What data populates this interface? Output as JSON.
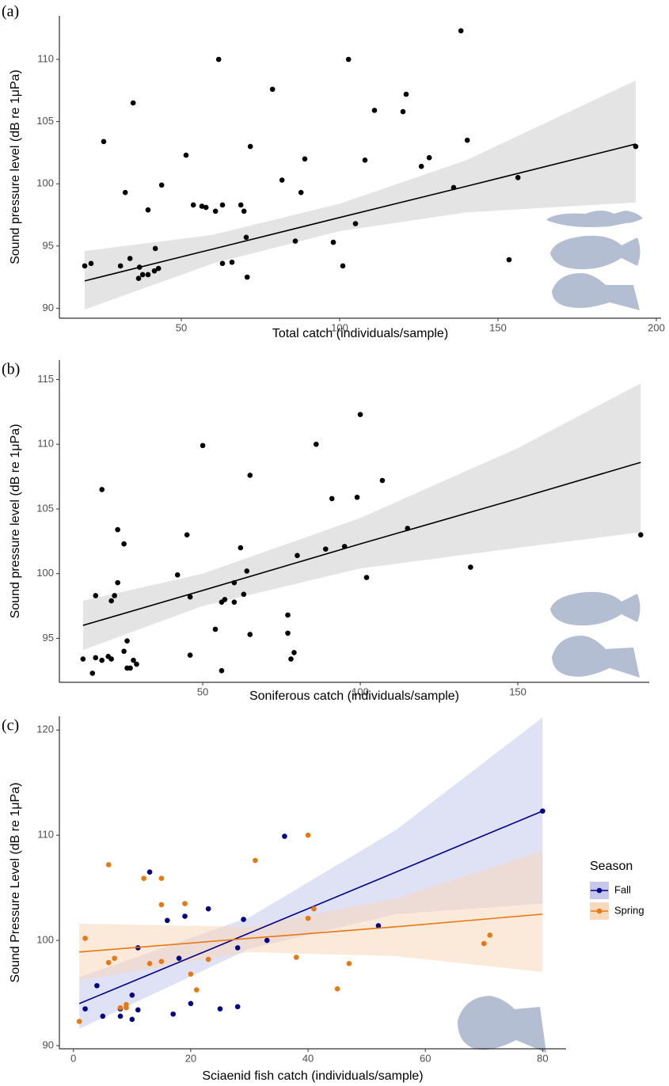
{
  "chart_data": [
    {
      "type": "scatter",
      "label": "(a)",
      "x_label": "Total catch (individuals/sample)",
      "y_label": "Sound pressure level (dB re 1μPa)",
      "xlim": [
        11.5,
        201.5
      ],
      "xticks": [
        50,
        100,
        150,
        200
      ],
      "ylim": [
        89.2,
        113.5
      ],
      "yticks": [
        90,
        95,
        100,
        105,
        110
      ],
      "band_color": "#d9d9d9",
      "series": [
        {
          "color": "#000000",
          "x": [
            19.5,
            21.5,
            25.5,
            30.8,
            32.3,
            33.8,
            34.8,
            36.8,
            36.5,
            37.8,
            39.5,
            39.5,
            41.5,
            41.8,
            42.8,
            43.8,
            51.5,
            53.8,
            56.5,
            57.8,
            60.8,
            61.8,
            63,
            63,
            66,
            68.8,
            69.8,
            70.8,
            70.5,
            71.8,
            78.8,
            81.8,
            86,
            87.8,
            89,
            98,
            101,
            102.8,
            105,
            108,
            111,
            120,
            121,
            125.8,
            128.3,
            136,
            138.3,
            140.3,
            153.5,
            156.3,
            193.5
          ],
          "values": [
            93.4,
            93.6,
            103.4,
            93.4,
            99.3,
            94.0,
            106.5,
            93.3,
            92.4,
            92.7,
            92.7,
            97.9,
            93.0,
            94.8,
            93.2,
            99.9,
            102.3,
            98.3,
            98.2,
            98.1,
            97.8,
            110.0,
            93.6,
            98.3,
            93.7,
            98.3,
            97.8,
            92.5,
            95.7,
            103.0,
            107.6,
            100.3,
            95.4,
            99.3,
            102.0,
            95.3,
            93.4,
            110.0,
            96.8,
            101.9,
            105.9,
            105.8,
            107.2,
            101.4,
            102.1,
            99.7,
            112.3,
            103.5,
            93.9,
            100.5,
            103.0
          ],
          "fit": {
            "x": [
              19.5,
              60,
              100,
              140,
              193.5
            ],
            "values": [
              92.2,
              94.76,
              97.29,
              99.8,
              103.2
            ],
            "lower": [
              89.9,
              93.6,
              96.2,
              97.7,
              98.5
            ],
            "upper": [
              94.6,
              95.9,
              98.4,
              101.9,
              108.3
            ]
          }
        }
      ]
    },
    {
      "type": "scatter",
      "label": "(b)",
      "x_label": "Soniferous catch (individuals/sample)",
      "y_label": "Sound pressure level (dB re 1μPa)",
      "xlim": [
        4.5,
        191.7
      ],
      "xticks": [
        50,
        100,
        150
      ],
      "ylim": [
        91.6,
        116.5
      ],
      "yticks": [
        95,
        100,
        105,
        110,
        115
      ],
      "band_color": "#d9d9d9",
      "series": [
        {
          "color": "#000000",
          "x": [
            12,
            15,
            16,
            16,
            18,
            18,
            20,
            21,
            21,
            22,
            23,
            23,
            25,
            25,
            26,
            26,
            27,
            28,
            29,
            42,
            45,
            46,
            46,
            50,
            54,
            56,
            56,
            57,
            60,
            60,
            62,
            63,
            64,
            65,
            65,
            77,
            77,
            78,
            79,
            80,
            86,
            89,
            91,
            95,
            99,
            100,
            102,
            107,
            115,
            135,
            189
          ],
          "values": [
            93.4,
            92.3,
            93.5,
            98.3,
            93.3,
            106.5,
            93.6,
            97.9,
            93.4,
            98.3,
            103.4,
            99.3,
            102.3,
            94.0,
            94.8,
            92.7,
            92.7,
            93.3,
            93.0,
            99.9,
            103.0,
            93.7,
            98.2,
            109.9,
            95.7,
            92.5,
            97.8,
            98.0,
            99.3,
            97.8,
            102.0,
            98.4,
            100.2,
            107.6,
            95.3,
            95.4,
            96.8,
            93.4,
            93.9,
            101.4,
            110.0,
            101.9,
            105.8,
            102.1,
            105.9,
            112.3,
            99.7,
            107.2,
            103.5,
            100.5,
            103.0
          ],
          "fit": {
            "x": [
              12,
              50,
              100,
              150,
              189
            ],
            "values": [
              96.0,
              98.7,
              102.3,
              105.8,
              108.6
            ],
            "lower": [
              94.1,
              97.5,
              100.4,
              102.0,
              103.2
            ],
            "upper": [
              97.9,
              100.0,
              104.3,
              109.7,
              114.7
            ]
          }
        }
      ]
    },
    {
      "type": "scatter",
      "label": "(c)",
      "x_label": "Sciaenid fish catch (individuals/sample)",
      "y_label": "Sound Pressure Level (dB re 1μPa)",
      "xlim": [
        -2.4,
        84
      ],
      "xticks": [
        0,
        20,
        40,
        60,
        80
      ],
      "ylim": [
        89.7,
        121.3
      ],
      "yticks": [
        90,
        100,
        110,
        120
      ],
      "legend_title": "Season",
      "series": [
        {
          "name": "Fall",
          "color": "#00008b",
          "band_color": "#c5c8ec",
          "x": [
            2,
            4,
            5,
            8,
            8,
            10,
            10,
            11,
            11,
            13,
            16,
            17,
            18,
            19,
            20,
            23,
            25,
            28,
            28,
            29,
            33,
            36,
            52,
            80
          ],
          "values": [
            93.5,
            95.7,
            92.8,
            92.8,
            93.5,
            94.8,
            92.5,
            93.4,
            99.3,
            106.5,
            101.9,
            93.0,
            98.3,
            102.3,
            94.0,
            103.0,
            93.5,
            93.7,
            99.3,
            102.0,
            100.0,
            109.9,
            101.4,
            112.3
          ],
          "fit": {
            "x": [
              1,
              30,
              55,
              80
            ],
            "values": [
              94.0,
              100.7,
              106.5,
              112.3
            ],
            "lower": [
              91.6,
              99.2,
              102.5,
              103.5
            ],
            "upper": [
              96.5,
              102.2,
              110.5,
              121.2
            ]
          }
        },
        {
          "name": "Spring",
          "color": "#e8780f",
          "band_color": "#f7d9bc",
          "x": [
            1,
            2,
            6,
            6,
            7,
            8,
            9,
            9,
            12,
            13,
            15,
            15,
            15,
            19,
            20,
            21,
            23,
            31,
            38,
            40,
            40,
            41,
            45,
            47,
            70,
            71
          ],
          "values": [
            92.3,
            100.2,
            97.9,
            107.2,
            98.3,
            93.6,
            93.9,
            93.6,
            105.9,
            97.8,
            103.4,
            98.0,
            105.9,
            103.5,
            96.8,
            95.3,
            98.2,
            107.6,
            98.4,
            110.0,
            102.1,
            103.0,
            95.4,
            97.8,
            99.7,
            100.5
          ],
          "fit": {
            "x": [
              1,
              30,
              55,
              80
            ],
            "values": [
              98.9,
              100.2,
              101.3,
              102.5
            ],
            "lower": [
              96.2,
              98.9,
              98.5,
              97.0
            ],
            "upper": [
              101.6,
              101.3,
              104.0,
              108.5
            ]
          }
        }
      ]
    }
  ]
}
